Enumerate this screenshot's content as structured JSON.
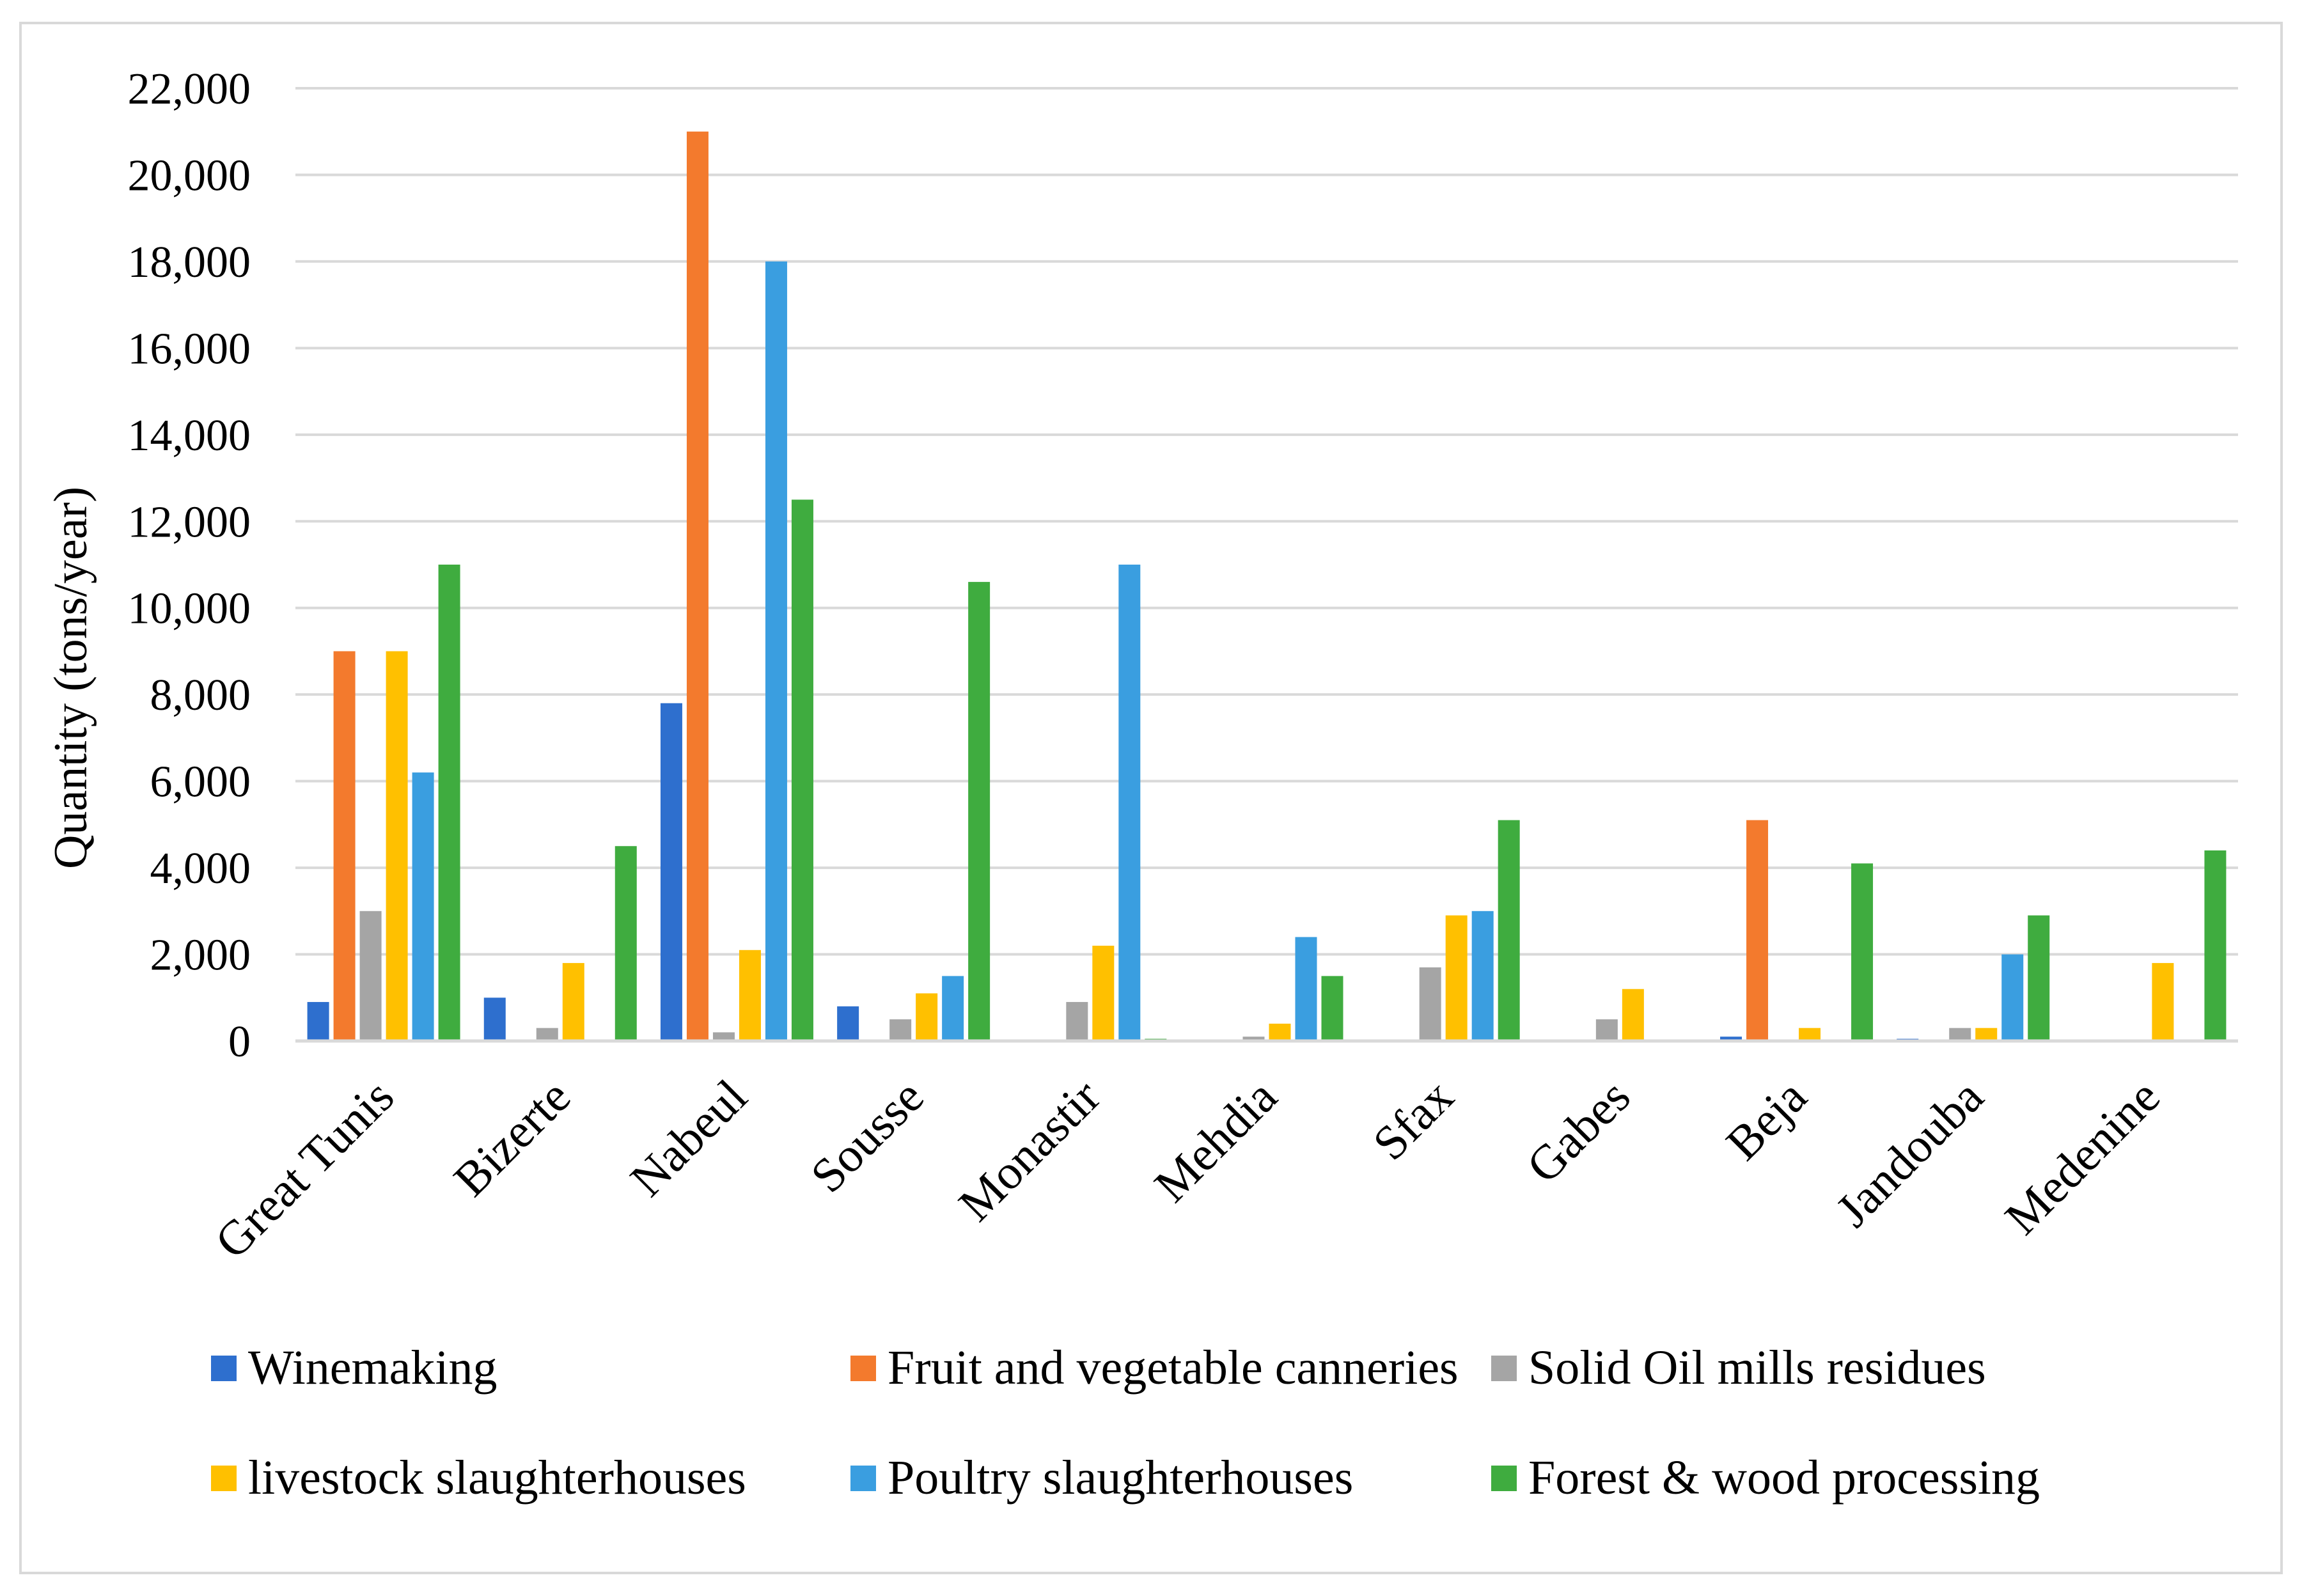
{
  "chart_data": {
    "type": "bar",
    "title": "",
    "xlabel": "",
    "ylabel": "Quantity (tons/year)",
    "ylim": [
      0,
      22000
    ],
    "yticks": [
      0,
      2000,
      4000,
      6000,
      8000,
      10000,
      12000,
      14000,
      16000,
      18000,
      20000,
      22000
    ],
    "ytick_labels": [
      "0",
      "2,000",
      "4,000",
      "6,000",
      "8,000",
      "10,000",
      "12,000",
      "14,000",
      "16,000",
      "18,000",
      "20,000",
      "22,000"
    ],
    "grid": true,
    "legend_position": "bottom",
    "categories": [
      "Great Tunis",
      "Bizerte",
      "Nabeul",
      "Sousse",
      "Monastir",
      "Mehdia",
      "Sfax",
      "Gabes",
      "Beja",
      "Jandouba",
      "Medenine"
    ],
    "series": [
      {
        "name": "Winemaking",
        "color": "#2e6fce",
        "values": [
          900,
          1000,
          7800,
          800,
          0,
          0,
          0,
          0,
          100,
          50,
          0
        ]
      },
      {
        "name": "Fruit and vegetable canneries",
        "color": "#f37a2d",
        "values": [
          9000,
          0,
          21000,
          0,
          0,
          0,
          0,
          0,
          5100,
          0,
          0
        ]
      },
      {
        "name": "Solid Oil mills residues",
        "color": "#a5a5a5",
        "values": [
          3000,
          300,
          200,
          500,
          900,
          100,
          1700,
          500,
          0,
          300,
          0
        ]
      },
      {
        "name": "livestock slaughterhouses",
        "color": "#ffc000",
        "values": [
          9000,
          1800,
          2100,
          1100,
          2200,
          400,
          2900,
          1200,
          300,
          300,
          1800
        ]
      },
      {
        "name": "Poultry slaughterhouses",
        "color": "#3a9ee0",
        "values": [
          6200,
          0,
          18000,
          1500,
          11000,
          2400,
          3000,
          0,
          0,
          2000,
          0
        ]
      },
      {
        "name": "Forest & wood processing",
        "color": "#3fac3f",
        "values": [
          11000,
          4500,
          12500,
          10600,
          50,
          1500,
          5100,
          0,
          4100,
          2900,
          4400
        ]
      }
    ]
  }
}
